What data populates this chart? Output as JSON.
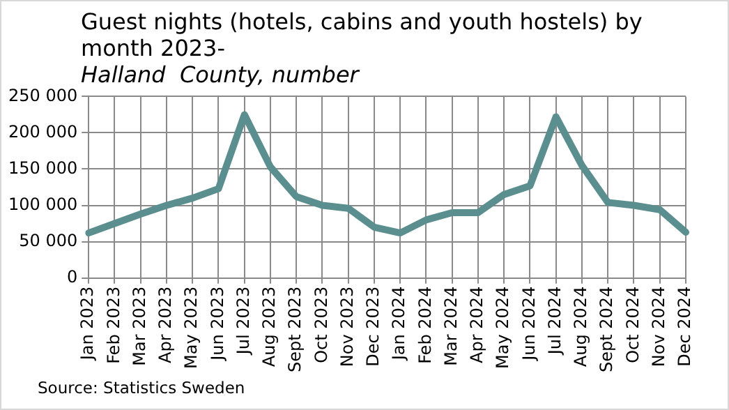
{
  "chart_data": {
    "type": "line",
    "title": "Guest nights (hotels, cabins and youth hostels) by month 2023-",
    "subtitle": "Halland  County, number",
    "categories": [
      "Jan 2023",
      "Feb 2023",
      "Mar 2023",
      "Apr 2023",
      "May 2023",
      "Jun 2023",
      "Jul 2023",
      "Aug 2023",
      "Sept 2023",
      "Oct 2023",
      "Nov 2023",
      "Dec 2023",
      "Jan 2024",
      "Feb 2024",
      "Mar 2024",
      "Apr 2024",
      "May 2024",
      "Jun 2024",
      "Jul 2024",
      "Aug 2024",
      "Sept 2024",
      "Oct 2024",
      "Nov 2024",
      "Dec 2024"
    ],
    "series": [
      {
        "color": "#5b8f8f",
        "values": [
          62000,
          75000,
          88000,
          100000,
          110000,
          123000,
          225000,
          153000,
          112000,
          100000,
          96000,
          70000,
          62000,
          80000,
          90000,
          90000,
          115000,
          127000,
          222000,
          155000,
          104000,
          100000,
          94000,
          63000
        ]
      }
    ],
    "ylim": [
      0,
      250000
    ],
    "yticks": [
      {
        "value": 0,
        "label": "0"
      },
      {
        "value": 50000,
        "label": "50 000"
      },
      {
        "value": 100000,
        "label": "100 000"
      },
      {
        "value": 150000,
        "label": "150 000"
      },
      {
        "value": 200000,
        "label": "200 000"
      },
      {
        "value": 250000,
        "label": "250 000"
      }
    ],
    "grid": true,
    "marker": "none",
    "line_style": "solid",
    "legend": false,
    "annotations": [
      "Source: Statistics Sweden"
    ]
  }
}
